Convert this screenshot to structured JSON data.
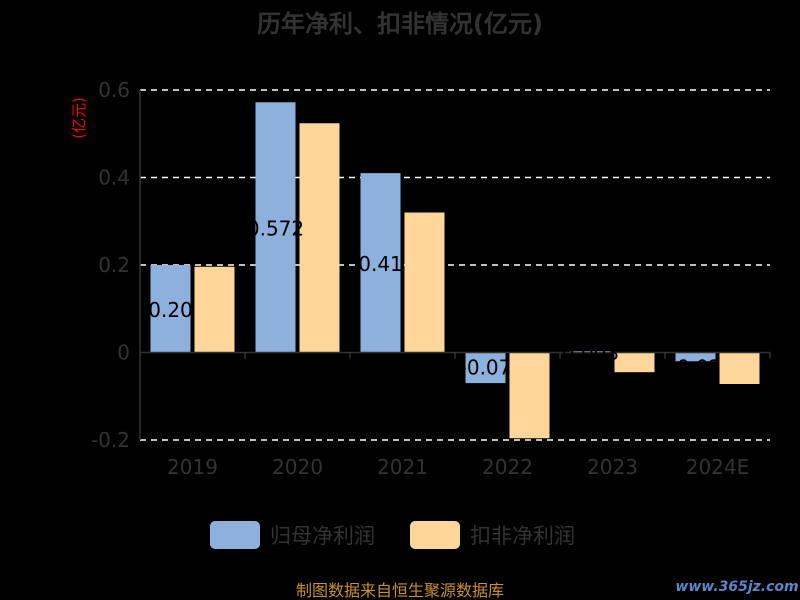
{
  "chart_data": {
    "type": "bar",
    "title": "历年净利、扣非情况(亿元)",
    "ylabel": "(亿元)",
    "categories": [
      "2019",
      "2020",
      "2021",
      "2022",
      "2023",
      "2024E"
    ],
    "series": [
      {
        "name": "归母净利润",
        "color": "#8eb0dd",
        "values": [
          0.2,
          0.572,
          0.41,
          -0.07,
          0.003,
          -0.02
        ],
        "labels": [
          "0.20",
          "0.572",
          "0.41",
          "-0.07",
          "0.003",
          "-0.02"
        ]
      },
      {
        "name": "扣非净利润",
        "color": "#ffd699",
        "values": [
          0.196,
          0.524,
          0.32,
          -0.196,
          -0.045,
          -0.072
        ]
      }
    ],
    "yticks": [
      "0.6",
      "0.4",
      "0.2",
      "0",
      "-0.2"
    ],
    "ylim": [
      -0.2,
      0.6
    ],
    "grid": true,
    "legend": "bottom"
  },
  "footer": {
    "source": "制图数据来自恒生聚源数据库",
    "watermark": "www.365jz.com"
  }
}
